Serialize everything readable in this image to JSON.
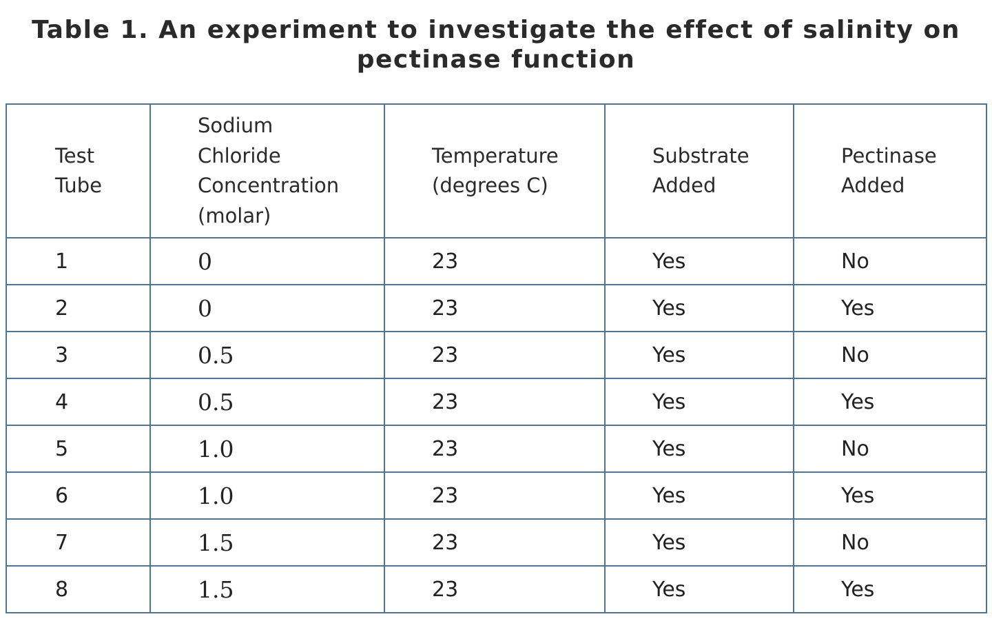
{
  "caption": {
    "line1": "Table 1. An experiment to investigate the effect of salinity on",
    "line2": "pectinase function"
  },
  "table": {
    "headers": [
      [
        "Test",
        "Tube"
      ],
      [
        "Sodium",
        "Chloride",
        "Concentration",
        "(molar)"
      ],
      [
        "Temperature",
        "(degrees C)"
      ],
      [
        "Substrate",
        "Added"
      ],
      [
        "Pectinase",
        "Added"
      ]
    ],
    "rows": [
      [
        "1",
        "0",
        "23",
        "Yes",
        "No"
      ],
      [
        "2",
        "0",
        "23",
        "Yes",
        "Yes"
      ],
      [
        "3",
        "0.5",
        "23",
        "Yes",
        "No"
      ],
      [
        "4",
        "0.5",
        "23",
        "Yes",
        "Yes"
      ],
      [
        "5",
        "1.0",
        "23",
        "Yes",
        "No"
      ],
      [
        "6",
        "1.0",
        "23",
        "Yes",
        "Yes"
      ],
      [
        "7",
        "1.5",
        "23",
        "Yes",
        "No"
      ],
      [
        "8",
        "1.5",
        "23",
        "Yes",
        "Yes"
      ]
    ]
  },
  "colors": {
    "border": "#4f7596",
    "text": "#222222"
  }
}
